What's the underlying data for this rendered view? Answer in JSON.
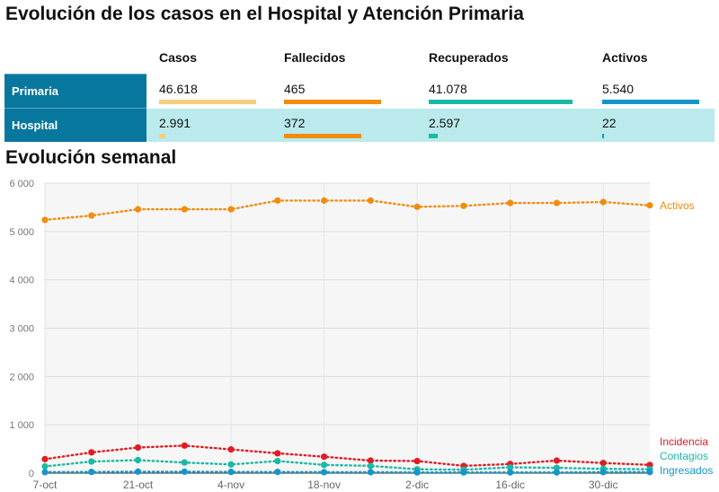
{
  "header": {
    "title": "Evolución de los casos en el Hospital y Atención Primaria",
    "subtitle": "Evolución semanal"
  },
  "summary_table": {
    "columns": [
      "Casos",
      "Fallecidos",
      "Recuperados",
      "Activos"
    ],
    "column_colors": [
      "#f8cd7d",
      "#f28c0f",
      "#1ab9a4",
      "#1496c8"
    ],
    "rows": [
      {
        "label": "Primaria",
        "cells": [
          {
            "text": "46.618",
            "value": 46618
          },
          {
            "text": "465",
            "value": 465
          },
          {
            "text": "41.078",
            "value": 41078
          },
          {
            "text": "5.540",
            "value": 5540
          }
        ]
      },
      {
        "label": "Hospital",
        "cells": [
          {
            "text": "2.991",
            "value": 2991
          },
          {
            "text": "372",
            "value": 372
          },
          {
            "text": "2.597",
            "value": 2597
          },
          {
            "text": "22",
            "value": 22
          }
        ]
      }
    ]
  },
  "chart_data": {
    "type": "line",
    "x": [
      "7-oct",
      "14-oct",
      "21-oct",
      "28-oct",
      "4-nov",
      "11-nov",
      "18-nov",
      "25-nov",
      "2-dic",
      "9-dic",
      "16-dic",
      "23-dic",
      "30-dic",
      "6-ene"
    ],
    "x_tick_labels": [
      "7-oct",
      "21-oct",
      "4-nov",
      "18-nov",
      "2-dic",
      "16-dic",
      "30-dic"
    ],
    "ylim": [
      0,
      6000
    ],
    "y_ticks": [
      0,
      1000,
      2000,
      3000,
      4000,
      5000,
      6000
    ],
    "y_tick_labels": [
      "0",
      "1 000",
      "2 000",
      "3 000",
      "4 000",
      "5 000",
      "6 000"
    ],
    "grid": true,
    "series": [
      {
        "name": "Activos",
        "color": "#f28c0f",
        "values": [
          5240,
          5330,
          5460,
          5460,
          5460,
          5640,
          5640,
          5640,
          5510,
          5530,
          5590,
          5590,
          5610,
          5540
        ]
      },
      {
        "name": "Incidencia",
        "color": "#e31b23",
        "values": [
          290,
          430,
          530,
          570,
          490,
          410,
          340,
          260,
          250,
          150,
          190,
          260,
          210,
          170
        ]
      },
      {
        "name": "Contagios",
        "color": "#1ab9a4",
        "values": [
          140,
          240,
          270,
          220,
          180,
          250,
          170,
          150,
          80,
          70,
          120,
          110,
          90,
          80
        ]
      },
      {
        "name": "Ingresados",
        "color": "#1496c8",
        "values": [
          20,
          25,
          30,
          30,
          25,
          25,
          20,
          20,
          15,
          15,
          15,
          15,
          20,
          22
        ]
      }
    ]
  }
}
